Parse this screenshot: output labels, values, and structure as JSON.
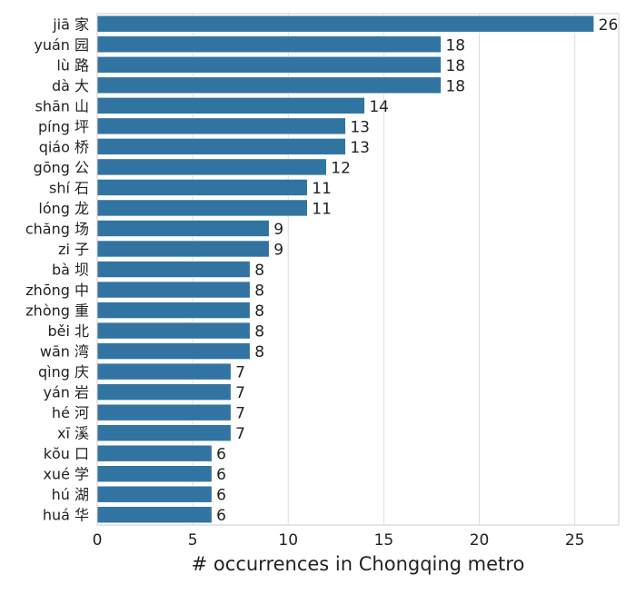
{
  "chart_data": {
    "type": "bar",
    "orientation": "horizontal",
    "title": "",
    "xlabel": "# occurrences in Chongqing metro",
    "ylabel": "",
    "xlim": [
      0,
      27.3
    ],
    "xticks": [
      0,
      5,
      10,
      15,
      20,
      25
    ],
    "grid": true,
    "bar_color": "#3274a1",
    "categories": [
      "jiā 家",
      "yuán 园",
      "lù 路",
      "dà 大",
      "shān 山",
      "píng 坪",
      "qiáo 桥",
      "gōng 公",
      "shí 石",
      "lóng 龙",
      "chăng 场",
      "zi 子",
      "bà 坝",
      "zhōng 中",
      "zhòng 重",
      "běi 北",
      "wān 湾",
      "qìng 庆",
      "yán 岩",
      "hé 河",
      "xī 溪",
      "kŏu 口",
      "xué 学",
      "hú 湖",
      "huá 华"
    ],
    "values": [
      26,
      18,
      18,
      18,
      14,
      13,
      13,
      12,
      11,
      11,
      9,
      9,
      8,
      8,
      8,
      8,
      8,
      7,
      7,
      7,
      7,
      6,
      6,
      6,
      6
    ]
  }
}
